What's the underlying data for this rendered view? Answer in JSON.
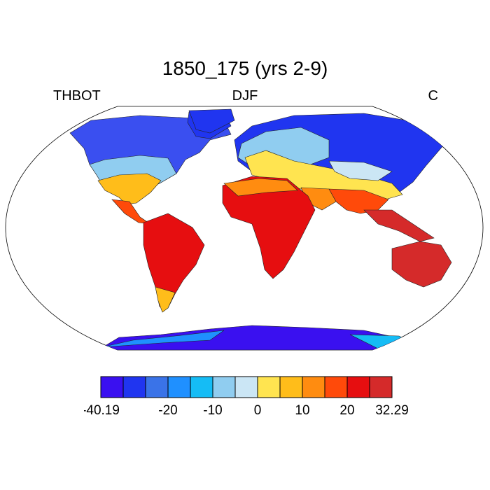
{
  "title": "1850_175 (yrs 2-9)",
  "left_label": "THBOT",
  "center_label": "DJF",
  "right_label": "C",
  "colorbar": {
    "colors": [
      "#3a10f0",
      "#2035f0",
      "#3a73e8",
      "#1f90ff",
      "#15bcf5",
      "#90cdf0",
      "#cbe6f5",
      "#ffe450",
      "#ffbd1a",
      "#ff8c10",
      "#ff4a0a",
      "#e60e10",
      "#d52a2a"
    ],
    "tick_labels": [
      "-40.19",
      "-20",
      "-10",
      "0",
      "10",
      "20",
      "32.29"
    ]
  },
  "chart_data": {
    "type": "heatmap",
    "variable": "THBOT",
    "season": "DJF",
    "units": "C",
    "range": [
      -40.19,
      32.29
    ],
    "levels": [
      -20,
      -10,
      0,
      10,
      20
    ],
    "projection": "Robinson"
  }
}
